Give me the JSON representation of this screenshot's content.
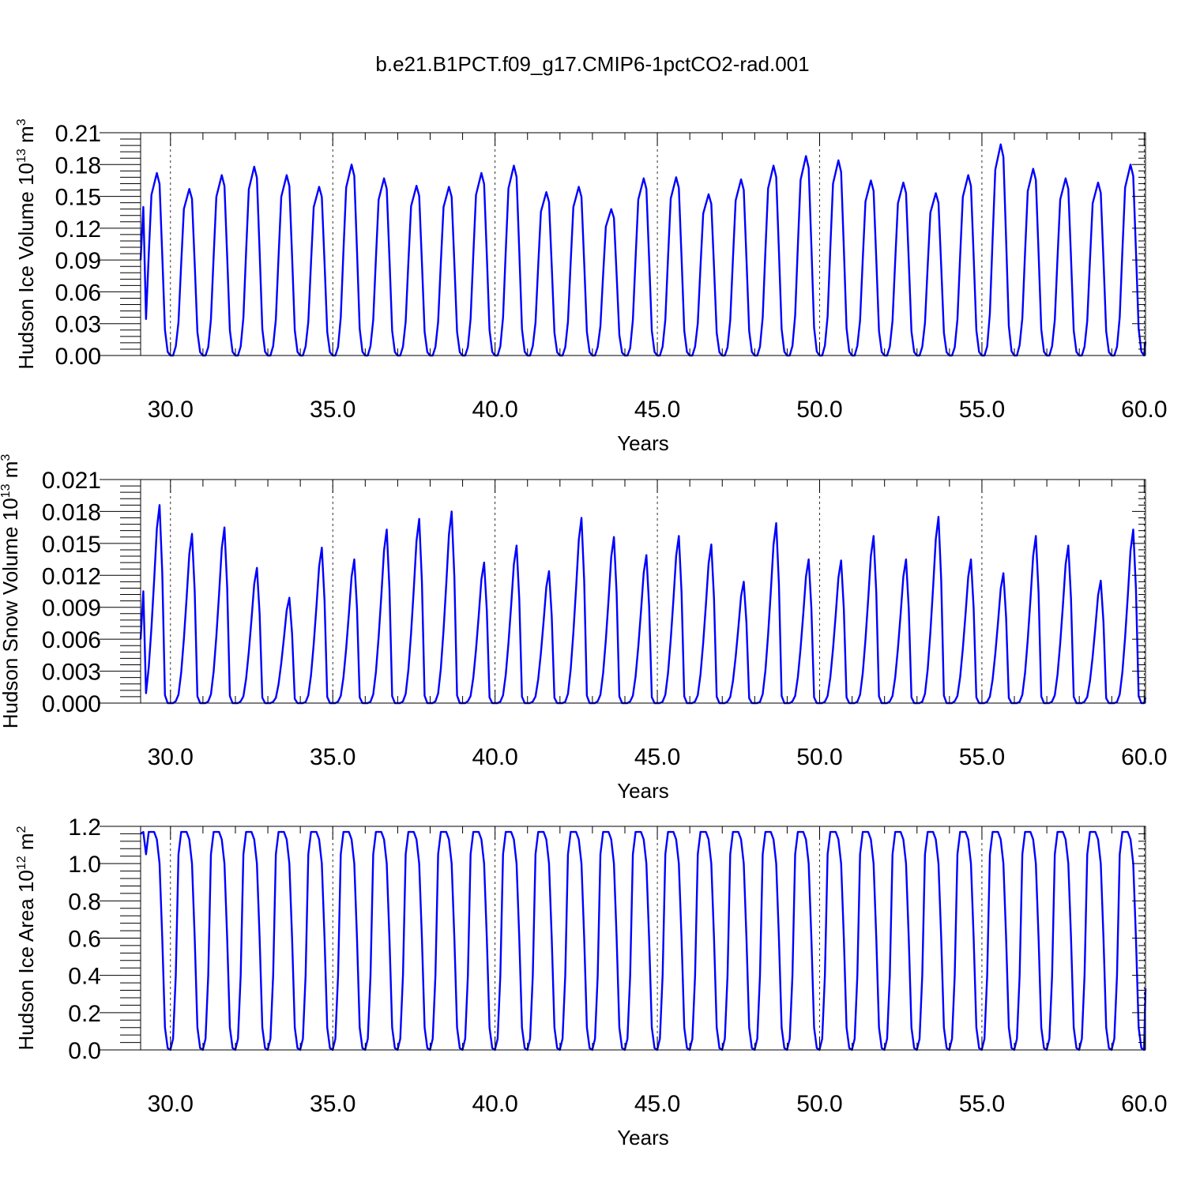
{
  "title": "b.e21.B1PCT.f09_g17.CMIP6-1pctCO2-rad.001",
  "colors": {
    "series": "#0000ff",
    "axis": "#000000",
    "grid": "#000000"
  },
  "chart_data": [
    {
      "type": "line",
      "name": "ice_volume",
      "ylabel": "Hudson Ice Volume 10",
      "ylabel_sup": "13",
      "ylabel_unit": " m",
      "ylabel_unit_sup": "3",
      "xlabel": "Years",
      "xlim": [
        29.08,
        60.04
      ],
      "ylim": [
        0,
        0.21
      ],
      "x_ticks": [
        "30.0",
        "35.0",
        "40.0",
        "45.0",
        "50.0",
        "55.0",
        "60.0"
      ],
      "x_tick_values": [
        30,
        35,
        40,
        45,
        50,
        55,
        60
      ],
      "y_ticks": [
        "0.00",
        "0.03",
        "0.06",
        "0.09",
        "0.12",
        "0.15",
        "0.18",
        "0.21"
      ],
      "y_tick_values": [
        0,
        0.03,
        0.06,
        0.09,
        0.12,
        0.15,
        0.18,
        0.21
      ],
      "grid": "dashed vertical lines at major x ticks",
      "start": 29.08,
      "step": 0.08333,
      "start_values": [
        0.09,
        0.14
      ],
      "monthly_profile": [
        0.2,
        0.55,
        0.88,
        0.94,
        1.0,
        0.94,
        0.55,
        0.14,
        0.02,
        0.0,
        0.0,
        0.05
      ],
      "annual_peaks": [
        0.172,
        0.157,
        0.17,
        0.178,
        0.17,
        0.159,
        0.18,
        0.167,
        0.16,
        0.159,
        0.172,
        0.179,
        0.154,
        0.159,
        0.138,
        0.167,
        0.168,
        0.152,
        0.166,
        0.179,
        0.188,
        0.184,
        0.165,
        0.163,
        0.153,
        0.17,
        0.199,
        0.176,
        0.167,
        0.163,
        0.18
      ],
      "end_value": 0.013
    },
    {
      "type": "line",
      "name": "snow_volume",
      "ylabel": "Hudson Snow Volume 10",
      "ylabel_sup": "13",
      "ylabel_unit": " m",
      "ylabel_unit_sup": "3",
      "xlabel": "Years",
      "xlim": [
        29.08,
        60.04
      ],
      "ylim": [
        0,
        0.021
      ],
      "x_ticks": [
        "30.0",
        "35.0",
        "40.0",
        "45.0",
        "50.0",
        "55.0",
        "60.0"
      ],
      "x_tick_values": [
        30,
        35,
        40,
        45,
        50,
        55,
        60
      ],
      "y_ticks": [
        "0.000",
        "0.003",
        "0.006",
        "0.009",
        "0.012",
        "0.015",
        "0.018",
        "0.021"
      ],
      "y_tick_values": [
        0,
        0.003,
        0.006,
        0.009,
        0.012,
        0.015,
        0.018,
        0.021
      ],
      "grid": "dashed vertical lines at major x ticks",
      "start": 29.08,
      "step": 0.08333,
      "start_values": [
        0.006,
        0.0105
      ],
      "monthly_profile": [
        0.05,
        0.18,
        0.38,
        0.62,
        0.88,
        1.0,
        0.66,
        0.04,
        0.0,
        0.0,
        0.0,
        0.01
      ],
      "annual_peaks": [
        0.0186,
        0.0159,
        0.0165,
        0.0127,
        0.0099,
        0.0146,
        0.0135,
        0.0163,
        0.0173,
        0.018,
        0.0132,
        0.0148,
        0.0124,
        0.0174,
        0.0156,
        0.0139,
        0.0157,
        0.0149,
        0.0114,
        0.0169,
        0.0135,
        0.0134,
        0.0157,
        0.0135,
        0.0175,
        0.0135,
        0.0122,
        0.0157,
        0.0148,
        0.0115,
        0.0163
      ],
      "end_value": 0.0005
    },
    {
      "type": "line",
      "name": "ice_area",
      "ylabel": "Hudson Ice Area 10",
      "ylabel_sup": "12",
      "ylabel_unit": " m",
      "ylabel_unit_sup": "2",
      "xlabel": "Years",
      "xlim": [
        29.08,
        60.04
      ],
      "ylim": [
        0,
        1.2
      ],
      "x_ticks": [
        "30.0",
        "35.0",
        "40.0",
        "45.0",
        "50.0",
        "55.0",
        "60.0"
      ],
      "x_tick_values": [
        30,
        35,
        40,
        45,
        50,
        55,
        60
      ],
      "y_ticks": [
        "0.0",
        "0.2",
        "0.4",
        "0.6",
        "0.8",
        "1.0",
        "1.2"
      ],
      "y_tick_values": [
        0,
        0.2,
        0.4,
        0.6,
        0.8,
        1.0,
        1.2
      ],
      "grid": "dashed vertical lines at major x ticks",
      "start": 29.08,
      "step": 0.08333,
      "start_values": [
        1.16,
        1.17
      ],
      "monthly_profile": [
        1.05,
        1.17,
        1.17,
        1.17,
        1.13,
        1.0,
        0.6,
        0.12,
        0.01,
        0.0,
        0.06,
        0.4
      ],
      "annual_peaks": [
        1.17,
        1.17,
        1.17,
        1.17,
        1.17,
        1.17,
        1.17,
        1.17,
        1.17,
        1.17,
        1.17,
        1.17,
        1.17,
        1.17,
        1.17,
        1.17,
        1.17,
        1.17,
        1.17,
        1.17,
        1.17,
        1.17,
        1.17,
        1.17,
        1.17,
        1.17,
        1.17,
        1.17,
        1.17,
        1.17,
        1.17
      ],
      "end_value": 0.33
    }
  ]
}
